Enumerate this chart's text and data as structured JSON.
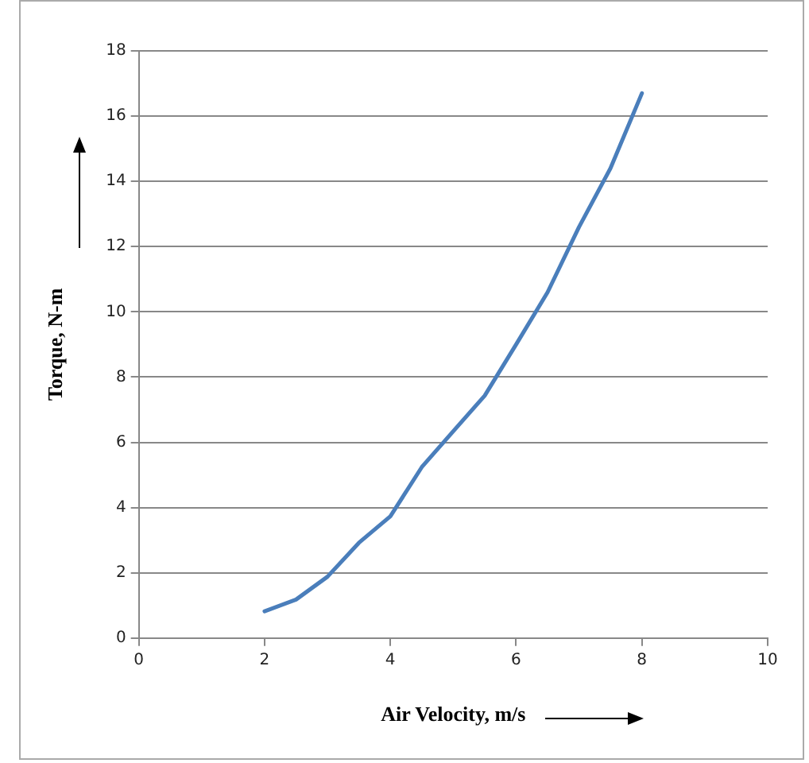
{
  "chart_data": {
    "type": "line",
    "xlabel": "Air Velocity, m/s",
    "ylabel": "Torque, N-m",
    "x": [
      2,
      2.5,
      3,
      3.5,
      4,
      4.5,
      5,
      5.5,
      6,
      6.5,
      7,
      7.5,
      8
    ],
    "series": [
      {
        "color": "#4a7ebb",
        "values": [
          0.82,
          1.18,
          1.88,
          2.92,
          3.73,
          5.24,
          6.34,
          7.43,
          9.0,
          10.6,
          12.6,
          14.4,
          16.7
        ]
      }
    ],
    "xlim": [
      0,
      10
    ],
    "xticks": [
      0,
      2,
      4,
      6,
      8,
      10
    ],
    "ylim": [
      0,
      18
    ],
    "yticks": [
      0,
      2,
      4,
      6,
      8,
      10,
      12,
      14,
      16,
      18
    ],
    "grid": "y",
    "legend": false,
    "marker": "none",
    "line_style": "solid"
  }
}
